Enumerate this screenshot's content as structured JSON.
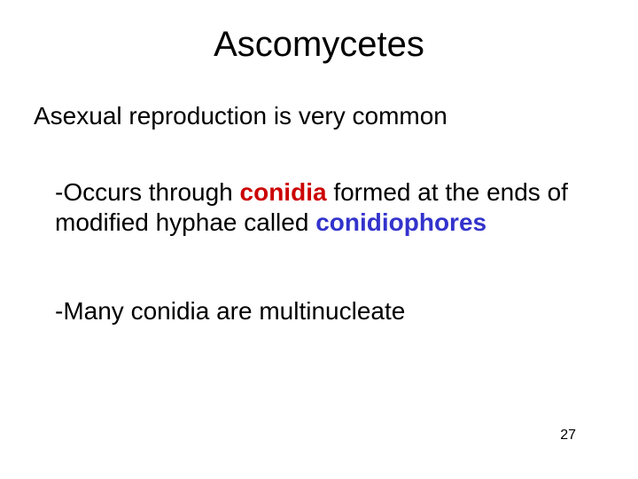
{
  "slide": {
    "title": "Ascomycetes",
    "line1": "Asexual reproduction is very common",
    "bullet1": {
      "pre": "-Occurs through ",
      "conidia": "conidia",
      "mid": " formed at the ends of modified hyphae called ",
      "conidiophores": "conidiophores"
    },
    "bullet2": "-Many conidia are multinucleate",
    "page_number": "27",
    "colors": {
      "text": "#000000",
      "highlight_red": "#cc0000",
      "highlight_blue": "#3333cc",
      "background": "#ffffff"
    },
    "fonts": {
      "title_size_pt": 40,
      "body_size_pt": 28,
      "pagenum_size_pt": 16,
      "family": "Arial"
    }
  }
}
